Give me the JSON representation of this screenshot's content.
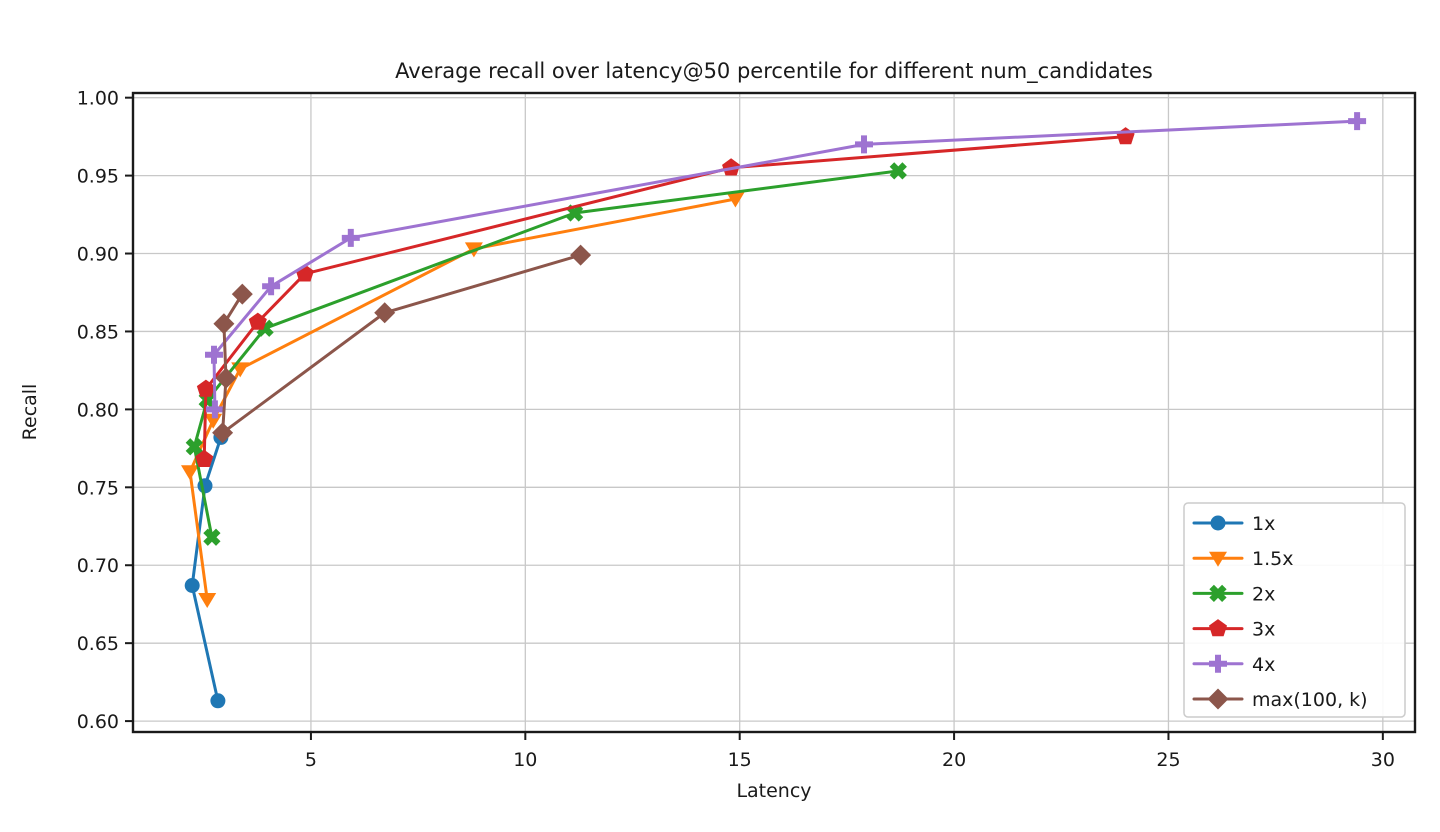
{
  "chart_data": {
    "type": "line",
    "title": "Average recall over latency@50 percentile for different num_candidates",
    "xlabel": "Latency",
    "ylabel": "Recall",
    "xlim": [
      0.85,
      30.75
    ],
    "ylim": [
      0.593,
      1.003
    ],
    "x_ticks": [
      5,
      10,
      15,
      20,
      25,
      30
    ],
    "y_ticks": [
      0.6,
      0.65,
      0.7,
      0.75,
      0.8,
      0.85,
      0.9,
      0.95,
      1.0
    ],
    "y_tick_labels": [
      "0.60",
      "0.65",
      "0.70",
      "0.75",
      "0.80",
      "0.85",
      "0.90",
      "0.95",
      "1.00"
    ],
    "grid": true,
    "legend_position": "lower right",
    "series": [
      {
        "name": "1x",
        "color": "#1f77b4",
        "marker": "circle",
        "points": [
          [
            2.83,
            0.613
          ],
          [
            2.23,
            0.687
          ],
          [
            2.53,
            0.751
          ],
          [
            2.9,
            0.782
          ]
        ]
      },
      {
        "name": "1.5x",
        "color": "#ff7f0e",
        "marker": "triangle-down",
        "points": [
          [
            2.58,
            0.678
          ],
          [
            2.18,
            0.76
          ],
          [
            2.72,
            0.793
          ],
          [
            3.35,
            0.826
          ],
          [
            8.8,
            0.903
          ],
          [
            14.9,
            0.935
          ]
        ]
      },
      {
        "name": "2x",
        "color": "#2ca02c",
        "marker": "x",
        "points": [
          [
            2.69,
            0.718
          ],
          [
            2.28,
            0.776
          ],
          [
            2.58,
            0.806
          ],
          [
            3.93,
            0.852
          ],
          [
            11.15,
            0.926
          ],
          [
            18.7,
            0.953
          ]
        ]
      },
      {
        "name": "3x",
        "color": "#d62728",
        "marker": "pentagon",
        "points": [
          [
            2.51,
            0.768
          ],
          [
            2.55,
            0.813
          ],
          [
            3.76,
            0.856
          ],
          [
            4.86,
            0.887
          ],
          [
            14.8,
            0.955
          ],
          [
            24.0,
            0.975
          ]
        ]
      },
      {
        "name": "4x",
        "color": "#9e73d1",
        "marker": "plus",
        "points": [
          [
            2.76,
            0.8
          ],
          [
            2.74,
            0.835
          ],
          [
            4.07,
            0.879
          ],
          [
            5.93,
            0.91
          ],
          [
            17.9,
            0.97
          ],
          [
            29.4,
            0.985
          ]
        ]
      },
      {
        "name": "max(100, k)",
        "color": "#8c564b",
        "marker": "diamond",
        "points": [
          [
            3.4,
            0.874
          ],
          [
            2.97,
            0.855
          ],
          [
            3.02,
            0.82
          ],
          [
            2.94,
            0.785
          ],
          [
            6.72,
            0.862
          ],
          [
            11.29,
            0.899
          ]
        ]
      }
    ],
    "style": {
      "grid_color": "#c8c8c8",
      "spine_color": "#1a1a1a",
      "legend_border_color": "#cccccc",
      "background": "#ffffff"
    }
  }
}
